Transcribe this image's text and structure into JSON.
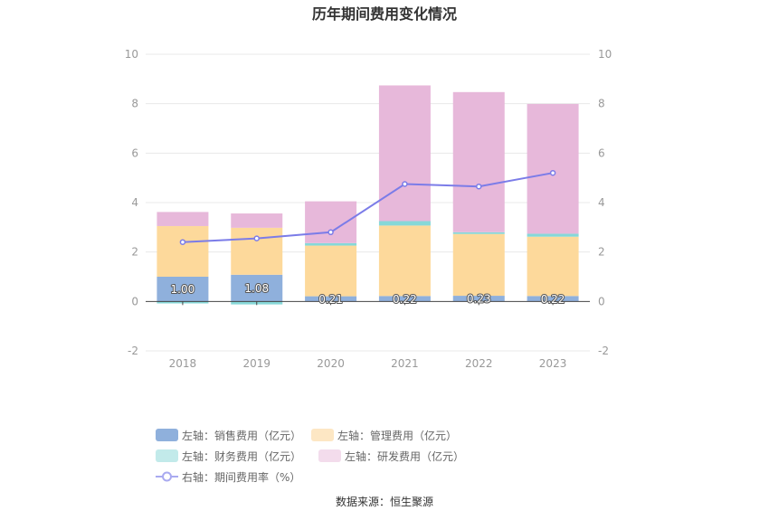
{
  "chart_data": {
    "type": "bar",
    "title": "历年期间费用变化情况",
    "categories": [
      "2018",
      "2019",
      "2020",
      "2021",
      "2022",
      "2023"
    ],
    "stacked": true,
    "series": [
      {
        "name": "左轴：销售费用（亿元）",
        "axis": "left",
        "type": "bar",
        "color": "#8fb0dc",
        "values": [
          1.0,
          1.08,
          0.21,
          0.22,
          0.23,
          0.22
        ],
        "labels": [
          "1.00",
          "1.08",
          "0.21",
          "0.22",
          "0.23",
          "0.22"
        ]
      },
      {
        "name": "左轴：管理费用（亿元）",
        "axis": "left",
        "type": "bar",
        "color": "#fdd99b",
        "values": [
          2.05,
          1.9,
          2.05,
          2.85,
          2.5,
          2.4
        ]
      },
      {
        "name": "左轴：财务费用（亿元）",
        "axis": "left",
        "type": "bar",
        "color": "#86d8d8",
        "values": [
          -0.08,
          -0.12,
          0.1,
          0.18,
          0.07,
          0.12
        ]
      },
      {
        "name": "左轴：研发费用（亿元）",
        "axis": "left",
        "type": "bar",
        "color": "#e7b8da",
        "values": [
          0.57,
          0.58,
          1.69,
          5.49,
          5.67,
          5.25
        ]
      },
      {
        "name": "右轴：期间费用率（%）",
        "axis": "right",
        "type": "line",
        "color": "#7b7ce8",
        "values": [
          2.4,
          2.55,
          2.8,
          4.75,
          4.65,
          5.2
        ]
      }
    ],
    "y_left": {
      "min": -2,
      "max": 10,
      "ticks": [
        -2,
        0,
        2,
        4,
        6,
        8,
        10
      ]
    },
    "y_right": {
      "min": -2,
      "max": 10,
      "ticks": [
        -2,
        0,
        2,
        4,
        6,
        8,
        10
      ]
    },
    "grid": true,
    "legend_position": "bottom"
  },
  "source_text": "数据来源：恒生聚源"
}
